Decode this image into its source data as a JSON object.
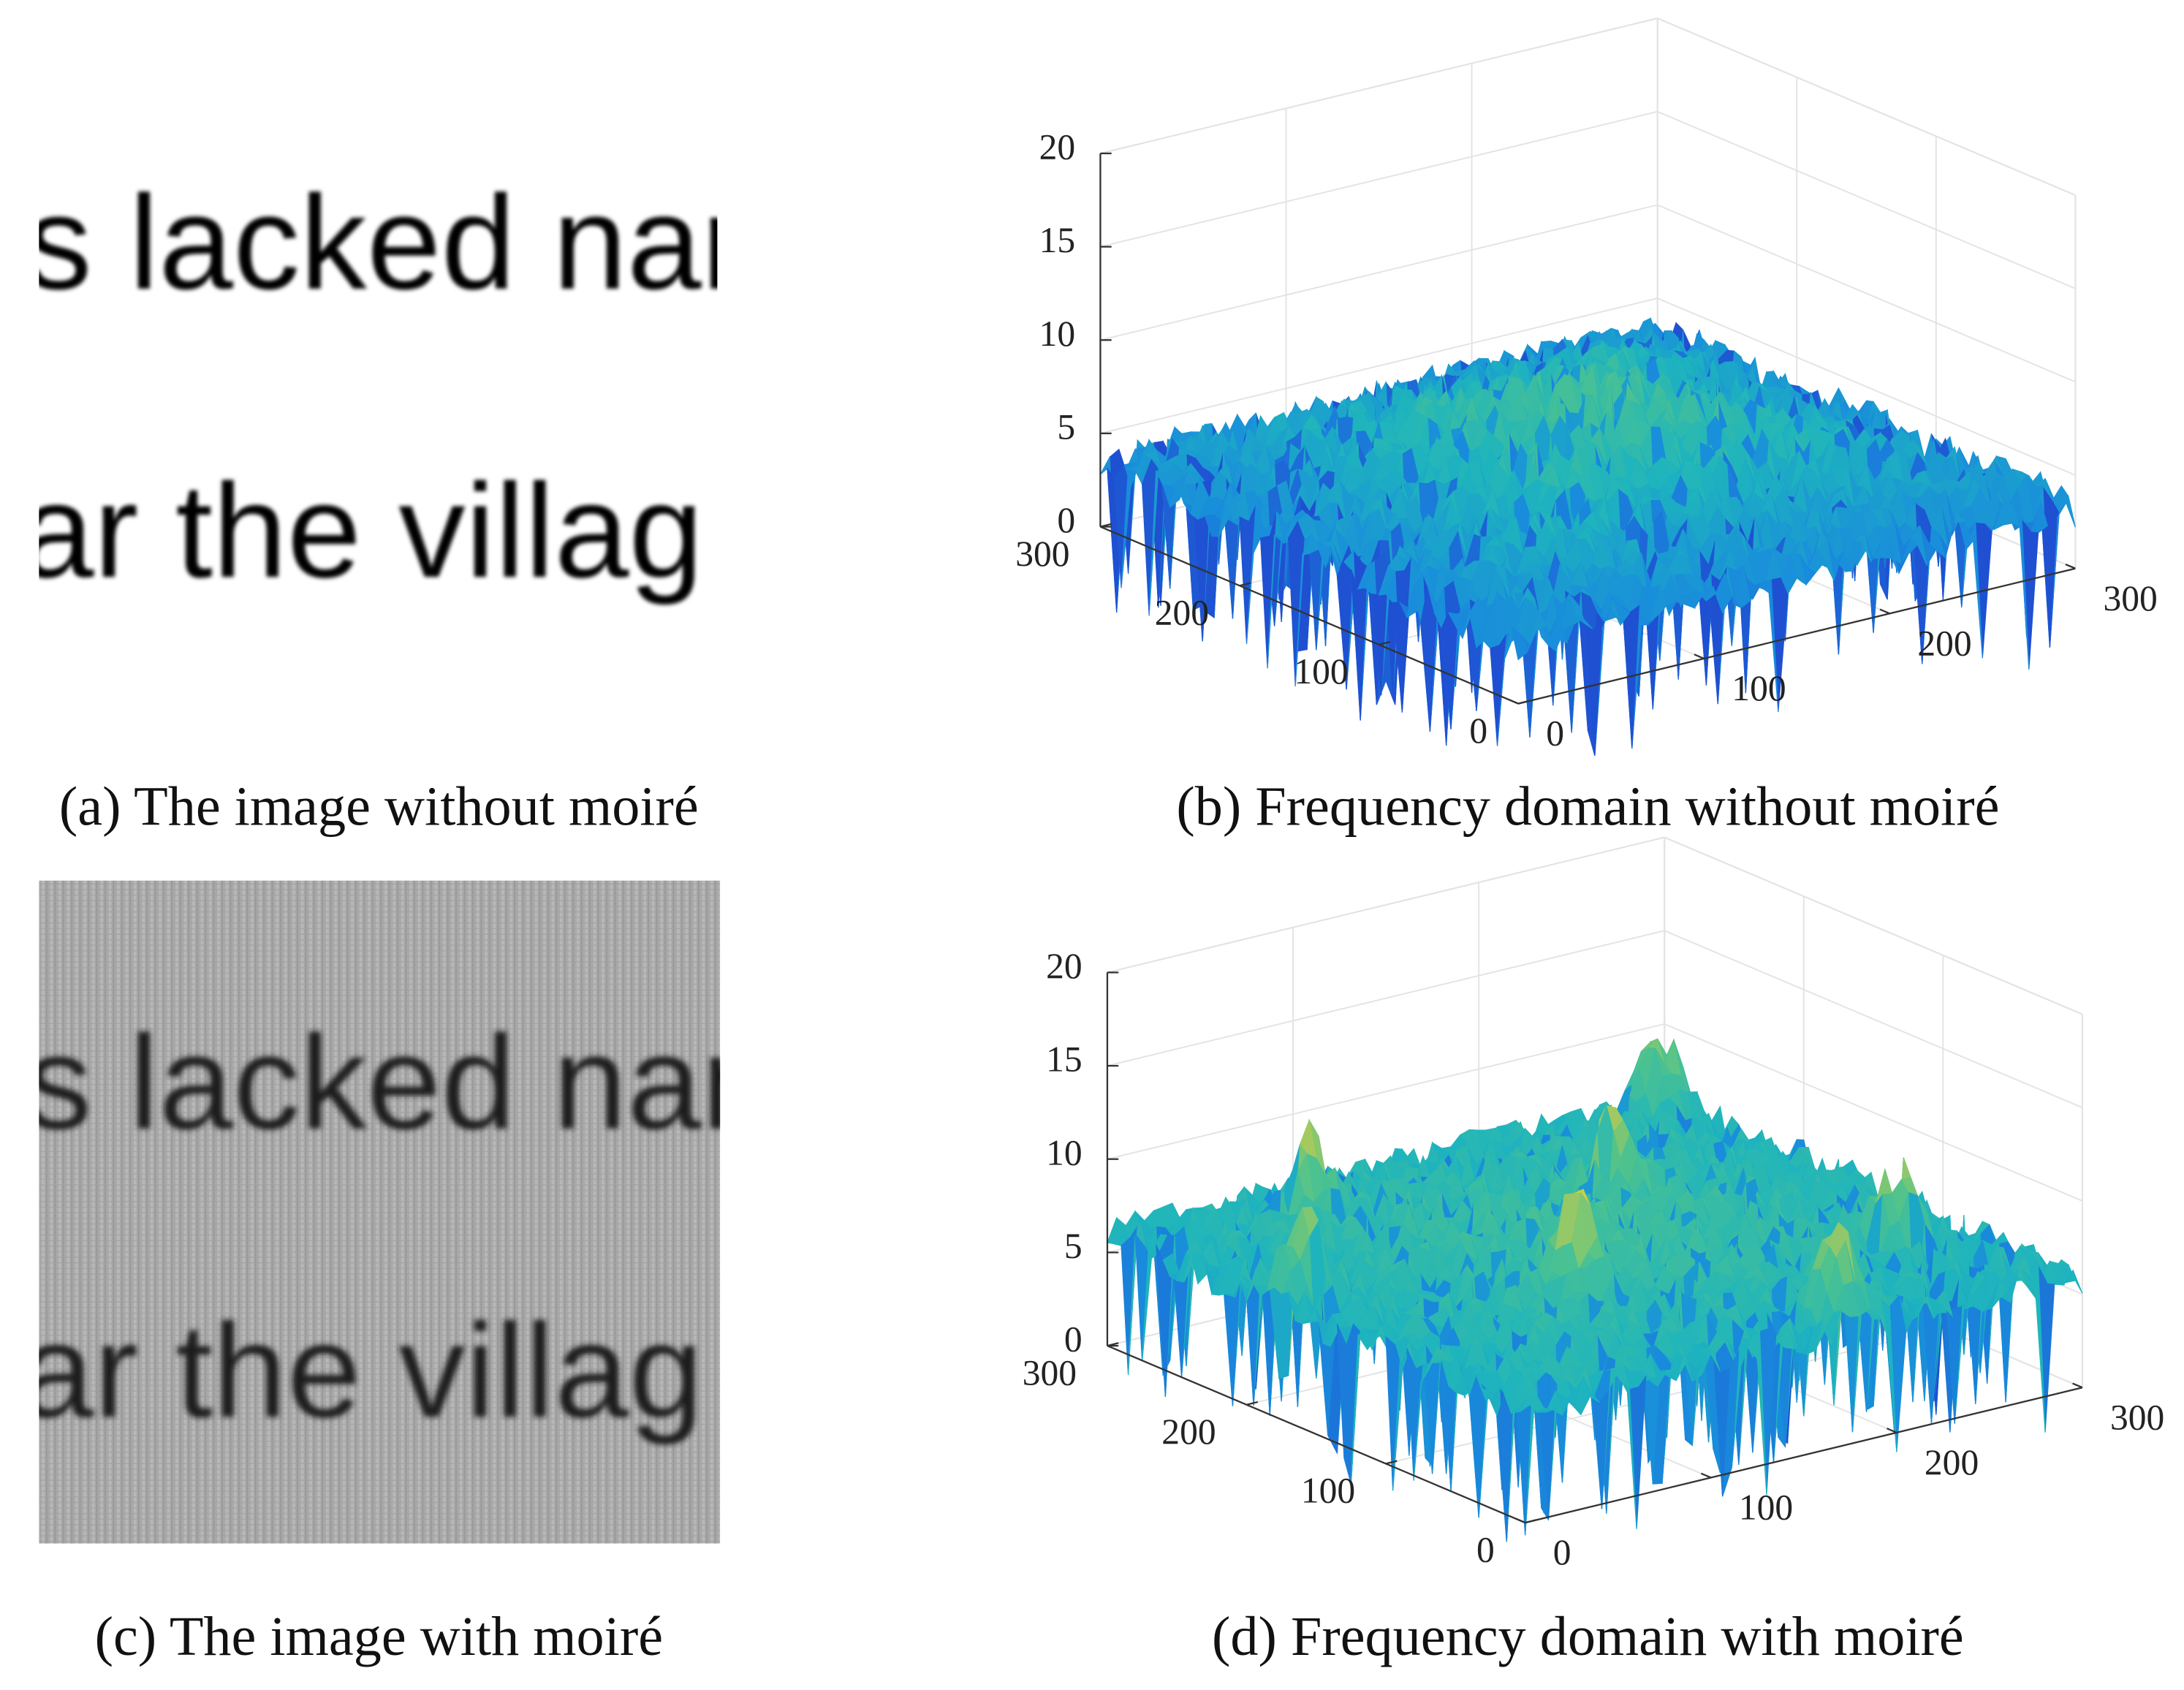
{
  "figure": {
    "panels": [
      {
        "caption": "(a) The image without moiré",
        "text_lines": [
          "s lacked nar",
          "ar the villag"
        ]
      },
      {
        "caption": "(b) Frequency domain without moiré",
        "zlim": [
          0,
          20
        ],
        "zticks": [
          0,
          5,
          10,
          15,
          20
        ],
        "xlim": [
          0,
          300
        ],
        "xticks": [
          0,
          100,
          200,
          300
        ],
        "ylim": [
          0,
          300
        ],
        "yticks": [
          0,
          100,
          200,
          300
        ],
        "grid": true
      },
      {
        "caption": "(c) The image with moiré",
        "text_lines": [
          "s lacked nar",
          "ar the villag"
        ]
      },
      {
        "caption": "(d) Frequency domain with moiré",
        "zlim": [
          0,
          20
        ],
        "zticks": [
          0,
          5,
          10,
          15,
          20
        ],
        "xlim": [
          0,
          300
        ],
        "xticks": [
          0,
          100,
          200,
          300
        ],
        "ylim": [
          0,
          300
        ],
        "yticks": [
          0,
          100,
          200,
          300
        ],
        "grid": true
      }
    ]
  }
}
